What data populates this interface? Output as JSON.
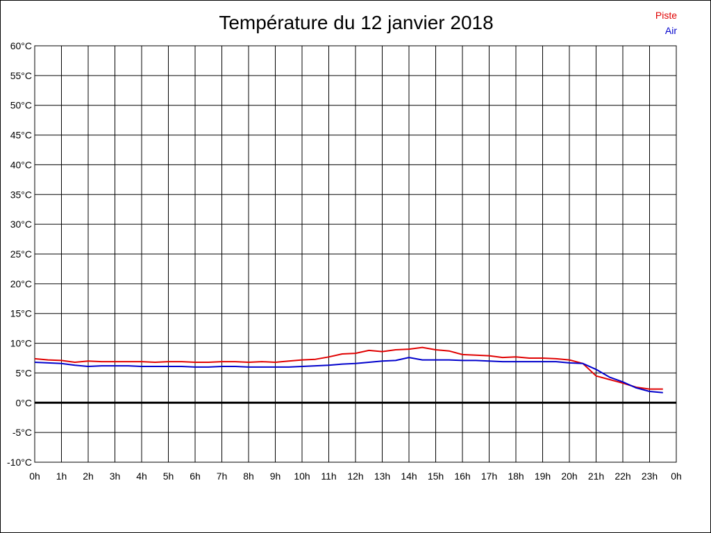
{
  "chart_data": {
    "type": "line",
    "title": "Température du 12 janvier 2018",
    "xlabel": "",
    "ylabel": "",
    "x_tick_labels": [
      "0h",
      "1h",
      "2h",
      "3h",
      "4h",
      "5h",
      "6h",
      "7h",
      "8h",
      "9h",
      "10h",
      "11h",
      "12h",
      "13h",
      "14h",
      "15h",
      "16h",
      "17h",
      "18h",
      "19h",
      "20h",
      "21h",
      "22h",
      "23h",
      "0h"
    ],
    "y_tick_labels": [
      "60°C",
      "55°C",
      "50°C",
      "45°C",
      "40°C",
      "35°C",
      "30°C",
      "25°C",
      "20°C",
      "15°C",
      "10°C",
      "5°C",
      "0°C",
      "-5°C",
      "-10°C"
    ],
    "xlim": [
      0,
      24
    ],
    "ylim": [
      -10,
      60
    ],
    "grid": true,
    "legend": "top-right",
    "series": [
      {
        "name": "Piste",
        "color": "#e00000",
        "x": [
          0,
          0.5,
          1,
          1.5,
          2,
          2.5,
          3,
          3.5,
          4,
          4.5,
          5,
          5.5,
          6,
          6.5,
          7,
          7.5,
          8,
          8.5,
          9,
          9.5,
          10,
          10.5,
          11,
          11.5,
          12,
          12.5,
          13,
          13.5,
          14,
          14.5,
          15,
          15.5,
          16,
          16.5,
          17,
          17.5,
          18,
          18.5,
          19,
          19.5,
          20,
          20.5,
          21,
          21.5,
          22,
          22.5,
          23,
          23.5
        ],
        "values": [
          7.4,
          7.2,
          7.1,
          6.8,
          7.0,
          6.9,
          6.9,
          6.9,
          6.9,
          6.8,
          6.9,
          6.9,
          6.8,
          6.8,
          6.9,
          6.9,
          6.8,
          6.9,
          6.8,
          7.0,
          7.2,
          7.3,
          7.7,
          8.2,
          8.3,
          8.8,
          8.6,
          8.9,
          9.0,
          9.3,
          8.9,
          8.7,
          8.1,
          8.0,
          7.9,
          7.6,
          7.7,
          7.5,
          7.5,
          7.4,
          7.2,
          6.6,
          4.5,
          3.9,
          3.3,
          2.6,
          2.3,
          2.3
        ]
      },
      {
        "name": "Air",
        "color": "#0000cc",
        "x": [
          0,
          0.5,
          1,
          1.5,
          2,
          2.5,
          3,
          3.5,
          4,
          4.5,
          5,
          5.5,
          6,
          6.5,
          7,
          7.5,
          8,
          8.5,
          9,
          9.5,
          10,
          10.5,
          11,
          11.5,
          12,
          12.5,
          13,
          13.5,
          14,
          14.5,
          15,
          15.5,
          16,
          16.5,
          17,
          17.5,
          18,
          18.5,
          19,
          19.5,
          20,
          20.5,
          21,
          21.5,
          22,
          22.5,
          23,
          23.5
        ],
        "values": [
          6.8,
          6.7,
          6.6,
          6.3,
          6.1,
          6.2,
          6.2,
          6.2,
          6.1,
          6.1,
          6.1,
          6.1,
          6.0,
          6.0,
          6.1,
          6.1,
          6.0,
          6.0,
          6.0,
          6.0,
          6.1,
          6.2,
          6.3,
          6.5,
          6.6,
          6.8,
          7.0,
          7.1,
          7.6,
          7.2,
          7.2,
          7.2,
          7.1,
          7.1,
          7.0,
          6.9,
          6.9,
          6.9,
          6.9,
          6.9,
          6.7,
          6.6,
          5.6,
          4.3,
          3.5,
          2.5,
          1.9,
          1.7
        ]
      }
    ]
  }
}
